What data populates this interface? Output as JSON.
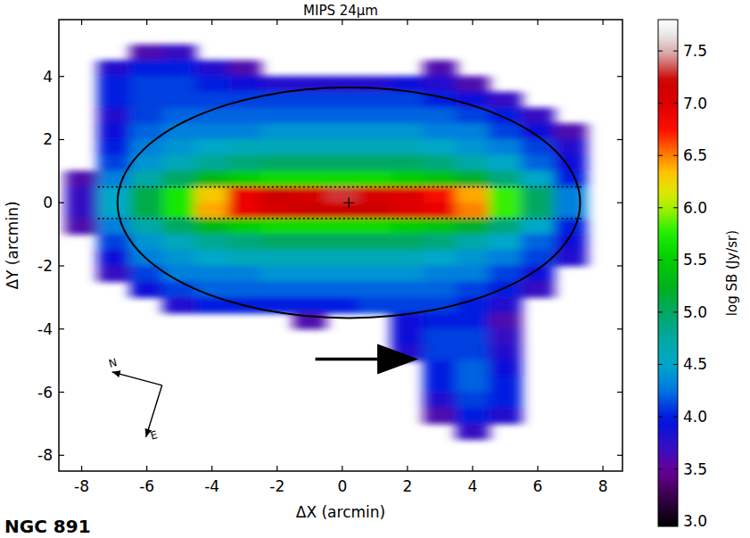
{
  "chart_data": {
    "type": "heatmap",
    "title": "MIPS 24μm",
    "x_label": "ΔX (arcmin)",
    "y_label": "ΔY (arcmin)",
    "caption": "NGC 891",
    "compass": {
      "north": "N",
      "east": "E"
    },
    "xlim": [
      -8.7,
      8.6
    ],
    "ylim": [
      -8.5,
      5.8
    ],
    "xticks": [
      -8,
      -6,
      -4,
      -2,
      0,
      2,
      4,
      6,
      8
    ],
    "yticks": [
      -8,
      -6,
      -4,
      -2,
      0,
      2,
      4
    ],
    "x": [
      -8,
      -7,
      -6,
      -5,
      -4,
      -3,
      -2,
      -1,
      0,
      1,
      2,
      3,
      4,
      5,
      6,
      7,
      8
    ],
    "y": [
      5.25,
      4.75,
      4.25,
      3.75,
      3.25,
      2.75,
      2.25,
      1.75,
      1.25,
      0.75,
      0.25,
      -0.25,
      -0.75,
      -1.25,
      -1.75,
      -2.25,
      -2.75,
      -3.25,
      -3.75,
      -4.25,
      -4.75,
      -5.25,
      -5.75,
      -6.25,
      -6.75,
      -7.25,
      -7.75,
      -8.25
    ],
    "values": [
      [
        null,
        null,
        null,
        null,
        null,
        null,
        null,
        null,
        null,
        null,
        null,
        null,
        null,
        null,
        null,
        null,
        null
      ],
      [
        null,
        null,
        3.6,
        3.7,
        null,
        null,
        null,
        null,
        null,
        null,
        null,
        null,
        null,
        null,
        null,
        null,
        null
      ],
      [
        null,
        3.8,
        4.0,
        4.0,
        3.8,
        3.6,
        null,
        null,
        null,
        null,
        null,
        3.6,
        null,
        null,
        null,
        null,
        null
      ],
      [
        null,
        4.0,
        4.1,
        4.1,
        4.0,
        3.9,
        3.8,
        3.8,
        3.8,
        3.8,
        3.9,
        3.8,
        3.6,
        null,
        null,
        null,
        null
      ],
      [
        null,
        4.0,
        4.1,
        4.1,
        4.1,
        4.1,
        4.1,
        4.1,
        4.1,
        4.1,
        4.1,
        4.0,
        3.9,
        3.7,
        null,
        null,
        null
      ],
      [
        null,
        3.8,
        4.1,
        4.2,
        4.2,
        4.2,
        4.2,
        4.2,
        4.2,
        4.2,
        4.2,
        4.2,
        4.1,
        4.0,
        3.7,
        null,
        null
      ],
      [
        null,
        3.9,
        4.2,
        4.3,
        4.3,
        4.3,
        4.4,
        4.4,
        4.4,
        4.4,
        4.4,
        4.3,
        4.3,
        4.1,
        3.9,
        3.6,
        null
      ],
      [
        null,
        4.0,
        4.3,
        4.4,
        4.5,
        4.6,
        4.6,
        4.6,
        4.6,
        4.6,
        4.6,
        4.5,
        4.4,
        4.3,
        4.1,
        3.8,
        null
      ],
      [
        null,
        4.1,
        4.4,
        4.6,
        4.8,
        4.9,
        5.0,
        5.0,
        5.0,
        5.0,
        5.0,
        4.9,
        4.7,
        4.5,
        4.2,
        3.9,
        null
      ],
      [
        3.6,
        4.3,
        4.7,
        5.0,
        5.3,
        5.5,
        5.6,
        5.6,
        5.6,
        5.6,
        5.5,
        5.4,
        5.2,
        4.9,
        4.5,
        4.0,
        null
      ],
      [
        3.7,
        4.5,
        5.1,
        5.7,
        6.3,
        6.9,
        7.2,
        7.1,
        7.3,
        7.1,
        7.0,
        6.8,
        6.4,
        5.8,
        5.0,
        4.3,
        null
      ],
      [
        3.7,
        4.5,
        5.1,
        5.7,
        6.4,
        6.9,
        7.1,
        7.2,
        7.2,
        7.2,
        7.0,
        6.9,
        6.5,
        5.8,
        5.0,
        4.3,
        null
      ],
      [
        3.6,
        4.3,
        4.7,
        5.0,
        5.3,
        5.5,
        5.6,
        5.6,
        5.6,
        5.6,
        5.5,
        5.4,
        5.2,
        4.9,
        4.5,
        4.0,
        null
      ],
      [
        null,
        4.1,
        4.4,
        4.6,
        4.8,
        4.9,
        5.0,
        5.0,
        5.0,
        5.0,
        5.0,
        4.9,
        4.7,
        4.5,
        4.2,
        3.9,
        null
      ],
      [
        null,
        3.9,
        4.3,
        4.4,
        4.5,
        4.6,
        4.6,
        4.6,
        4.6,
        4.6,
        4.6,
        4.5,
        4.4,
        4.3,
        4.1,
        3.8,
        null
      ],
      [
        null,
        3.7,
        4.1,
        4.3,
        4.3,
        4.3,
        4.4,
        4.4,
        4.4,
        4.4,
        4.4,
        4.3,
        4.3,
        4.1,
        3.9,
        null,
        null
      ],
      [
        null,
        null,
        3.9,
        4.1,
        4.2,
        4.2,
        4.2,
        4.2,
        4.2,
        4.2,
        4.2,
        4.2,
        4.1,
        4.0,
        3.7,
        null,
        null
      ],
      [
        null,
        null,
        null,
        3.8,
        4.0,
        4.0,
        4.0,
        4.0,
        4.0,
        4.1,
        4.1,
        4.1,
        4.0,
        3.8,
        null,
        null,
        null
      ],
      [
        null,
        null,
        null,
        null,
        null,
        null,
        null,
        3.6,
        null,
        null,
        3.9,
        4.0,
        4.0,
        3.6,
        null,
        null,
        null
      ],
      [
        null,
        null,
        null,
        null,
        null,
        null,
        null,
        null,
        null,
        null,
        3.9,
        4.1,
        4.1,
        3.7,
        null,
        null,
        null
      ],
      [
        null,
        null,
        null,
        null,
        null,
        null,
        null,
        null,
        null,
        null,
        3.8,
        4.1,
        4.1,
        3.8,
        null,
        null,
        null
      ],
      [
        null,
        null,
        null,
        null,
        null,
        null,
        null,
        null,
        null,
        null,
        null,
        4.0,
        4.2,
        3.9,
        null,
        null,
        null
      ],
      [
        null,
        null,
        null,
        null,
        null,
        null,
        null,
        null,
        null,
        null,
        null,
        4.0,
        4.2,
        4.0,
        null,
        null,
        null
      ],
      [
        null,
        null,
        null,
        null,
        null,
        null,
        null,
        null,
        null,
        null,
        null,
        3.8,
        4.1,
        4.0,
        null,
        null,
        null
      ],
      [
        null,
        null,
        null,
        null,
        null,
        null,
        null,
        null,
        null,
        null,
        null,
        3.6,
        4.0,
        3.8,
        null,
        null,
        null
      ],
      [
        null,
        null,
        null,
        null,
        null,
        null,
        null,
        null,
        null,
        null,
        null,
        null,
        3.7,
        null,
        null,
        null,
        null
      ],
      [
        null,
        null,
        null,
        null,
        null,
        null,
        null,
        null,
        null,
        null,
        null,
        null,
        null,
        null,
        null,
        null,
        null
      ],
      [
        null,
        null,
        null,
        null,
        null,
        null,
        null,
        null,
        null,
        null,
        null,
        null,
        null,
        null,
        null,
        null,
        null
      ]
    ],
    "ellipse": {
      "center": [
        0.2,
        0
      ],
      "semi_axes": [
        7.1,
        3.65
      ]
    },
    "strip": {
      "x": [
        -7.5,
        7.4
      ],
      "y": [
        -0.5,
        0.5
      ]
    },
    "colorbar": {
      "label": "log SB (Jy/sr)",
      "range": [
        2.95,
        7.8
      ],
      "ticks": [
        {
          "value": 3,
          "label": "3.0"
        },
        3.5,
        {
          "value": 4,
          "label": "4.0"
        },
        4.5,
        {
          "value": 5,
          "label": "5.0"
        },
        5.5,
        {
          "value": 6,
          "label": "6.0"
        },
        6.5,
        {
          "value": 7,
          "label": "7.0"
        },
        7.5
      ]
    }
  }
}
